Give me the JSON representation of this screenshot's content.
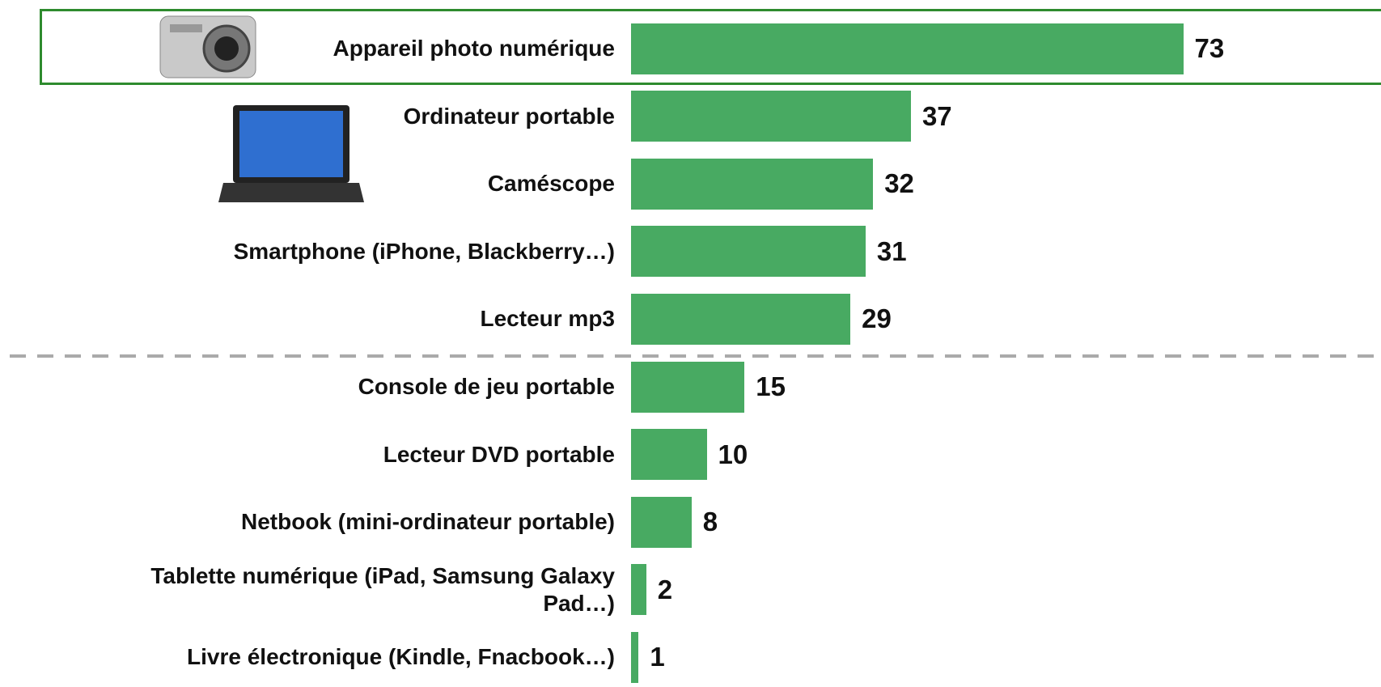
{
  "chart_data": {
    "type": "bar",
    "orientation": "horizontal",
    "categories": [
      "Appareil photo numérique",
      "Ordinateur portable",
      "Caméscope",
      "Smartphone (iPhone, Blackberry…)",
      "Lecteur mp3",
      "Console de jeu portable",
      "Lecteur DVD portable",
      "Netbook (mini-ordinateur portable)",
      "Tablette numérique (iPad, Samsung Galaxy Pad…)",
      "Livre électronique (Kindle, Fnacbook…)"
    ],
    "values": [
      73,
      37,
      32,
      31,
      29,
      15,
      10,
      8,
      2,
      1
    ],
    "color": "#48aa62"
  }
}
